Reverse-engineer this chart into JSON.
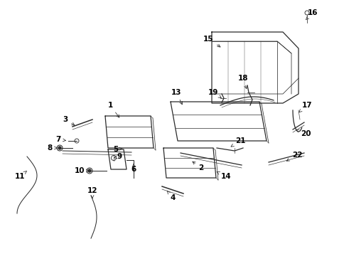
{
  "background_color": "#ffffff",
  "line_color": "#2a2a2a",
  "label_color": "#000000",
  "figsize": [
    4.85,
    3.57
  ],
  "dpi": 100,
  "annotations": [
    [
      "1",
      155,
      148,
      170,
      168
    ],
    [
      "2",
      283,
      236,
      268,
      225
    ],
    [
      "3",
      92,
      168,
      108,
      178
    ],
    [
      "4",
      243,
      278,
      235,
      268
    ],
    [
      "5",
      163,
      210,
      175,
      208
    ],
    [
      "6",
      188,
      238,
      188,
      230
    ],
    [
      "7",
      82,
      196,
      96,
      198
    ],
    [
      "8",
      70,
      208,
      84,
      208
    ],
    [
      "9",
      168,
      220,
      160,
      222
    ],
    [
      "10",
      112,
      240,
      126,
      240
    ],
    [
      "11",
      28,
      248,
      38,
      240
    ],
    [
      "12",
      130,
      268,
      130,
      282
    ],
    [
      "13",
      248,
      130,
      258,
      150
    ],
    [
      "14",
      318,
      248,
      302,
      240
    ],
    [
      "15",
      293,
      55,
      313,
      68
    ],
    [
      "16",
      440,
      18,
      430,
      28
    ],
    [
      "17",
      432,
      148,
      418,
      160
    ],
    [
      "18",
      342,
      110,
      348,
      128
    ],
    [
      "19",
      300,
      130,
      312,
      138
    ],
    [
      "20",
      430,
      188,
      416,
      182
    ],
    [
      "21",
      338,
      198,
      322,
      208
    ],
    [
      "22",
      418,
      218,
      400,
      228
    ]
  ]
}
